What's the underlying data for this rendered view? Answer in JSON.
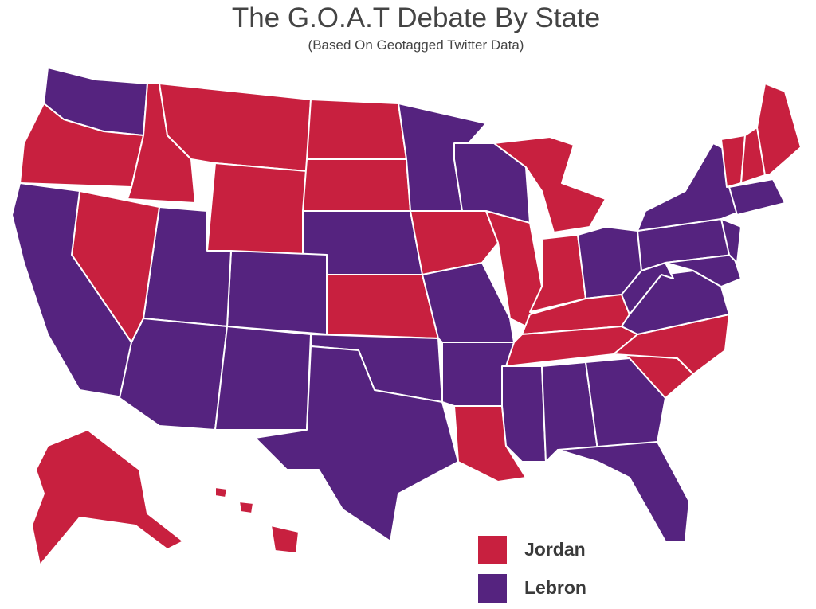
{
  "header": {
    "title": "The G.O.A.T Debate By State",
    "subtitle": "(Based On Geotagged Twitter Data)"
  },
  "legend": [
    {
      "label": "Jordan",
      "color": "#c8203f"
    },
    {
      "label": "Lebron",
      "color": "#55237f"
    }
  ]
}
